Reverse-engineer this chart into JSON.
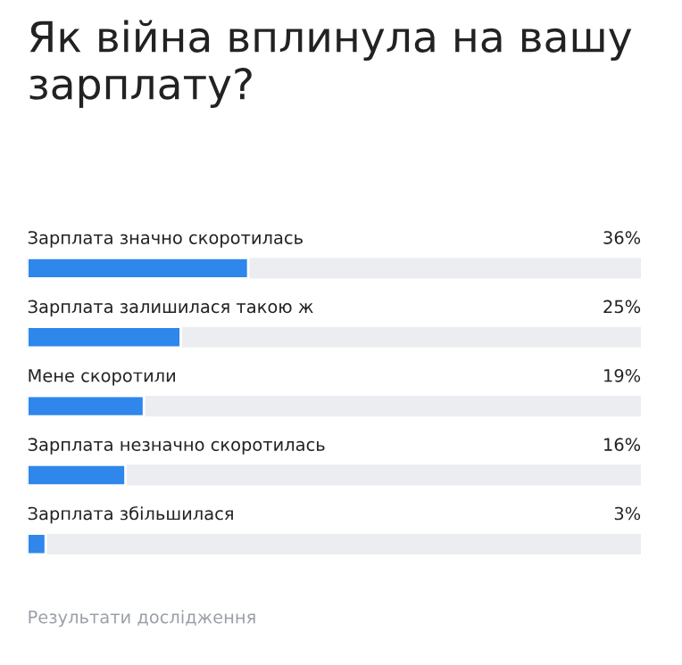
{
  "chart_data": {
    "type": "bar",
    "orientation": "horizontal",
    "title": "Як війна вплинула на вашу зарплату?",
    "categories": [
      "Зарплата значно скоротилась",
      "Зарплата залишилася такою ж",
      "Мене скоротили",
      "Зарплата незначно скоротилась",
      "Зарплата збільшилася"
    ],
    "values": [
      36,
      25,
      19,
      16,
      3
    ],
    "value_labels": [
      "36%",
      "25%",
      "19%",
      "16%",
      "3%"
    ],
    "color": "#2f86eb",
    "xlim": [
      0,
      100
    ],
    "annotations": [
      "Результати дослідження"
    ]
  }
}
